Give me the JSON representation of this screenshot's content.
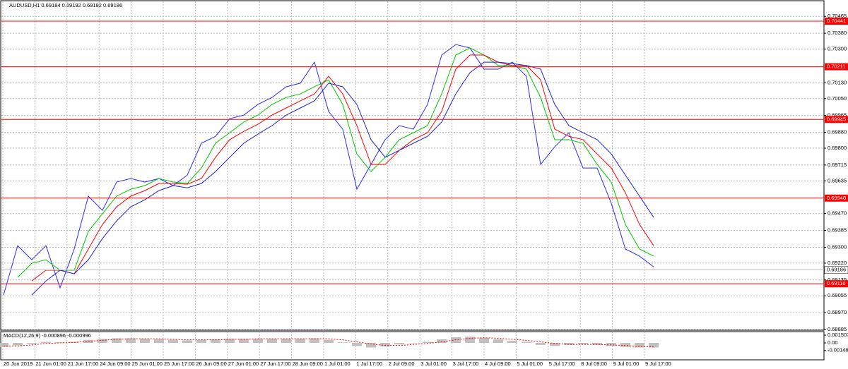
{
  "chart_data": [
    {
      "type": "line",
      "title": "AUDUSD,H1  0.69184 0.69192 0.69182 0.69186",
      "x_labels": [
        "20 Jun 2019",
        "21 Jun 01:00",
        "21 Jun 17:00",
        "24 Jun 09:00",
        "25 Jun 01:00",
        "25 Jun 17:00",
        "26 Jun 09:00",
        "27 Jun 01:00",
        "27 Jun 17:00",
        "28 Jun 09:00",
        "1 Jul 01:00",
        "1 Jul 17:00",
        "2 Jul 09:00",
        "3 Jul 01:00",
        "3 Jul 17:00",
        "4 Jul 09:00",
        "5 Jul 01:00",
        "5 Jul 17:00",
        "8 Jul 09:00",
        "9 Jul 01:00",
        "9 Jul 17:00"
      ],
      "series": [
        {
          "color": "#2b2bff",
          "values": [
            0.69059,
            0.69308,
            0.69237,
            0.69308,
            0.69095,
            0.69291,
            0.69558,
            0.69486,
            0.69629,
            0.69647,
            0.69629,
            0.69647,
            0.69611,
            0.69664,
            0.69825,
            0.6986,
            0.69949,
            0.69967,
            0.70021,
            0.70056,
            0.7011,
            0.70128,
            0.70234,
            0.69985,
            0.69896,
            0.69593,
            0.69718,
            0.69843,
            0.69914,
            0.69896,
            0.70021,
            0.7027,
            0.70323,
            0.70306,
            0.70199,
            0.70199,
            0.70234,
            0.70163,
            0.69718,
            0.69807,
            0.69878,
            0.697,
            0.697,
            0.69522,
            0.69291,
            0.69255,
            0.69201
          ]
        },
        {
          "color": "#00c800",
          "values": [
            null,
            0.69148,
            0.69219,
            0.69237,
            0.69184,
            0.69184,
            0.6938,
            0.69469,
            0.69558,
            0.69593,
            0.69611,
            0.69647,
            0.69629,
            0.69622,
            0.697,
            0.69825,
            0.69878,
            0.69932,
            0.69967,
            0.70021,
            0.70056,
            0.70074,
            0.7011,
            0.70145,
            0.70021,
            0.69771,
            0.69682,
            0.69754,
            0.69843,
            0.69878,
            0.69914,
            0.70074,
            0.7027,
            0.70306,
            0.7027,
            0.70217,
            0.70217,
            0.70199,
            0.70056,
            0.69843,
            0.69843,
            0.69825,
            0.69718,
            0.69629,
            0.69415,
            0.69291,
            0.69255
          ]
        },
        {
          "color": "#ff0000",
          "values": [
            null,
            null,
            0.6913,
            0.69184,
            0.69184,
            0.69166,
            0.69291,
            0.69415,
            0.69504,
            0.69558,
            0.69586,
            0.69622,
            0.69622,
            0.69618,
            0.69647,
            0.69754,
            0.69843,
            0.69885,
            0.69921,
            0.69967,
            0.70003,
            0.70039,
            0.70074,
            0.70163,
            0.70074,
            0.69914,
            0.69718,
            0.69718,
            0.69789,
            0.69843,
            0.69878,
            0.69985,
            0.70199,
            0.7027,
            0.7027,
            0.70234,
            0.70217,
            0.70217,
            0.70145,
            0.69896,
            0.6986,
            0.69843,
            0.69771,
            0.697,
            0.69575,
            0.69415,
            0.69308
          ]
        },
        {
          "color": "#2020d0",
          "values": [
            null,
            null,
            0.69059,
            0.6913,
            0.69184,
            0.69166,
            0.69237,
            0.69344,
            0.69433,
            0.69504,
            0.6954,
            0.69586,
            0.69611,
            0.696,
            0.69622,
            0.69682,
            0.69754,
            0.69825,
            0.69871,
            0.69914,
            0.69967,
            0.70003,
            0.70039,
            0.70128,
            0.7011,
            0.70021,
            0.69843,
            0.69754,
            0.69789,
            0.69825,
            0.6986,
            0.69932,
            0.70074,
            0.70181,
            0.70234,
            0.70234,
            0.70227,
            0.70217,
            0.70199,
            0.70021,
            0.69914,
            0.69878,
            0.69843,
            0.69771,
            0.69664,
            0.69558,
            0.69451
          ]
        }
      ],
      "ylim": [
        0.68885,
        0.7053
      ],
      "yticks": [
        0.70465,
        {
          "value": 0.7038,
          "label": "0.70380"
        },
        {
          "value": 0.703,
          "label": "0.70300"
        },
        {
          "value": 0.7013,
          "label": "0.70130"
        },
        {
          "value": 0.7005,
          "label": "0.70050"
        },
        0.69965,
        {
          "value": 0.6988,
          "label": "0.69880"
        },
        {
          "value": 0.698,
          "label": "0.69800"
        },
        0.69715,
        0.69635,
        {
          "value": 0.6947,
          "label": "0.69470"
        },
        0.69385,
        {
          "value": 0.693,
          "label": "0.69300"
        },
        {
          "value": 0.6922,
          "label": "0.69220"
        },
        0.69135,
        0.69055,
        {
          "value": 0.6897,
          "label": "0.68970"
        },
        0.68885
      ],
      "grid": true,
      "levels": [
        0.70441,
        0.70211,
        0.69945,
        0.69548,
        0.69116
      ],
      "level_color": "#ff0000",
      "last_price": 0.69186
    },
    {
      "type": "bar",
      "title": "MACD(12,26,9) -0.000896 -0.000996",
      "values": [
        -0.0008,
        -0.0005,
        -0.0002,
        0.0002,
        0.0001,
        0.0002,
        0.0006,
        0.0008,
        0.0009,
        0.0009,
        0.0008,
        0.0007,
        0.0006,
        0.0005,
        0.0006,
        0.0007,
        0.0008,
        0.0008,
        0.0008,
        0.0008,
        0.0008,
        0.0008,
        0.0009,
        0.0006,
        0.0001,
        -0.0006,
        -0.0009,
        -0.0007,
        -0.0003,
        0,
        0.0002,
        0.0007,
        0.0011,
        0.0012,
        0.001,
        0.0007,
        0.0004,
        0.0002,
        -0.0004,
        -0.0006,
        -0.0004,
        -0.0003,
        -0.0004,
        -0.0006,
        -0.0008,
        -0.0009,
        -0.0009
      ],
      "color": "#c0c0c0",
      "signal": [
        -0.0006,
        -0.0006,
        -0.0004,
        -0.0001,
        0,
        0.0001,
        0.0003,
        0.0005,
        0.0007,
        0.0008,
        0.0008,
        0.0008,
        0.0007,
        0.0006,
        0.0006,
        0.0006,
        0.0007,
        0.0007,
        0.0008,
        0.0008,
        0.0008,
        0.0008,
        0.0008,
        0.0008,
        0.0006,
        0.0002,
        -0.0002,
        -0.0005,
        -0.0005,
        -0.0003,
        -0.0001,
        0.0002,
        0.0006,
        0.0009,
        0.001,
        0.0009,
        0.0007,
        0.0005,
        0.0002,
        -0.0001,
        -0.0003,
        -0.0003,
        -0.0003,
        -0.0004,
        -0.0005,
        -0.0007,
        -0.0008
      ],
      "signal_color": "#ff0000",
      "ylim": [
        -0.0033,
        0.0022
      ],
      "yticks": [
        0.001507,
        {
          "value": 0,
          "label": "0.00"
        },
        -0.00148
      ]
    }
  ]
}
